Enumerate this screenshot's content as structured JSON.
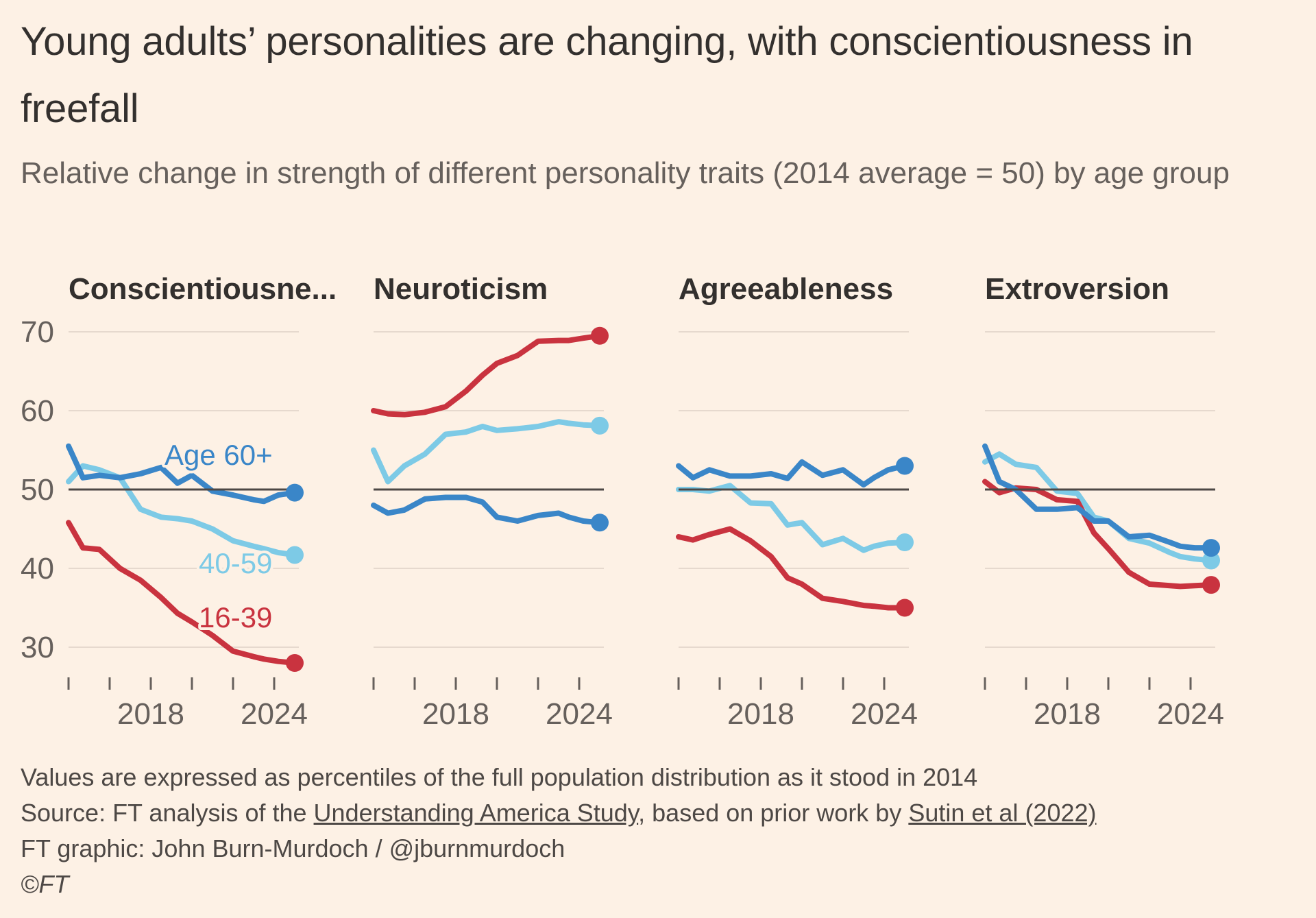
{
  "title": "Young adults’ personalities are changing, with conscientiousness in freefall",
  "subtitle": "Relative change in strength of different personality traits (2014 average = 50) by age group",
  "footer": {
    "note": "Values are expressed as percentiles of the full population distribution as it stood in 2014",
    "source_prefix": "Source: FT analysis of the ",
    "source_link1": "Understanding America Study",
    "source_middle": ", based on prior work by ",
    "source_link2": "Sutin et al (2022)",
    "credit": "FT graphic: John Burn-Murdoch / @jburnmurdoch",
    "copyright": "©FT"
  },
  "colors": {
    "age_60_plus": "#3a86c8",
    "age_40_59": "#7dcae6",
    "age_16_39": "#c9333f",
    "baseline": "#4d4845",
    "grid": "#e6d9ce",
    "background": "#fdf1e5"
  },
  "chart_data": {
    "type": "line",
    "y_ticks": [
      30,
      40,
      50,
      60,
      70
    ],
    "x_tick_labels": [
      "2018",
      "2024"
    ],
    "x_tick_labels_at": [
      2018,
      2024
    ],
    "x_minor_ticks": [
      2014,
      2016,
      2018,
      2020,
      2022,
      2024
    ],
    "xlim": [
      2014,
      2025
    ],
    "ylim": [
      25,
      72
    ],
    "baseline": 50,
    "grid": true,
    "x": [
      2014,
      2014.7,
      2015.5,
      2016.5,
      2017.5,
      2018.5,
      2019.3,
      2020,
      2021,
      2022,
      2023,
      2023.5,
      2024.2,
      2025
    ],
    "series_names": [
      "Age 60+",
      "40-59",
      "16-39"
    ],
    "panels": [
      {
        "title": "Conscientiousne...",
        "series": [
          {
            "name": "Age 60+",
            "label": "Age 60+",
            "values": [
              55.5,
              51.5,
              51.8,
              51.5,
              52.0,
              52.8,
              50.8,
              51.8,
              49.8,
              49.3,
              48.7,
              48.5,
              49.3,
              49.6
            ]
          },
          {
            "name": "40-59",
            "label": "40-59",
            "values": [
              51.0,
              53.0,
              52.5,
              51.5,
              47.5,
              46.5,
              46.3,
              46.0,
              45.0,
              43.5,
              42.8,
              42.5,
              42.0,
              41.7
            ]
          },
          {
            "name": "16-39",
            "label": "16-39",
            "values": [
              45.8,
              42.6,
              42.4,
              40.0,
              38.5,
              36.3,
              34.3,
              33.2,
              31.5,
              29.5,
              28.8,
              28.5,
              28.2,
              28.0
            ]
          }
        ]
      },
      {
        "title": "Neuroticism",
        "series": [
          {
            "name": "Age 60+",
            "values": [
              48.0,
              47.0,
              47.4,
              48.8,
              49.0,
              49.0,
              48.4,
              46.5,
              46.0,
              46.7,
              47.0,
              46.5,
              46.0,
              45.8
            ]
          },
          {
            "name": "40-59",
            "values": [
              55.0,
              51.0,
              53.0,
              54.5,
              57.0,
              57.3,
              58.0,
              57.5,
              57.7,
              58.0,
              58.6,
              58.4,
              58.2,
              58.1
            ]
          },
          {
            "name": "16-39",
            "values": [
              60.0,
              59.6,
              59.5,
              59.8,
              60.5,
              62.5,
              64.5,
              66.0,
              67.0,
              68.8,
              68.9,
              68.9,
              69.2,
              69.5
            ]
          }
        ]
      },
      {
        "title": "Agreeableness",
        "series": [
          {
            "name": "Age 60+",
            "values": [
              53.0,
              51.5,
              52.5,
              51.7,
              51.7,
              52.0,
              51.4,
              53.5,
              51.8,
              52.5,
              50.6,
              51.5,
              52.5,
              53.0
            ]
          },
          {
            "name": "40-59",
            "values": [
              50.0,
              50.0,
              49.8,
              50.5,
              48.3,
              48.2,
              45.5,
              45.8,
              43.0,
              43.8,
              42.3,
              42.8,
              43.2,
              43.3
            ]
          },
          {
            "name": "16-39",
            "values": [
              44.0,
              43.6,
              44.3,
              45.0,
              43.5,
              41.5,
              38.8,
              38.0,
              36.2,
              35.8,
              35.3,
              35.2,
              35.0,
              35.0
            ]
          }
        ]
      },
      {
        "title": "Extroversion",
        "series": [
          {
            "name": "Age 60+",
            "values": [
              55.5,
              51.0,
              50.0,
              47.5,
              47.5,
              47.7,
              46.0,
              46.0,
              44.0,
              44.2,
              43.3,
              42.8,
              42.6,
              42.6
            ]
          },
          {
            "name": "40-59",
            "values": [
              53.5,
              54.5,
              53.2,
              52.8,
              49.8,
              49.5,
              46.5,
              46.0,
              43.8,
              43.2,
              42.0,
              41.5,
              41.2,
              41.0
            ]
          },
          {
            "name": "16-39",
            "values": [
              51.0,
              49.6,
              50.2,
              50.0,
              48.7,
              48.5,
              44.5,
              42.5,
              39.5,
              38.0,
              37.8,
              37.7,
              37.8,
              37.9
            ]
          }
        ]
      }
    ]
  }
}
